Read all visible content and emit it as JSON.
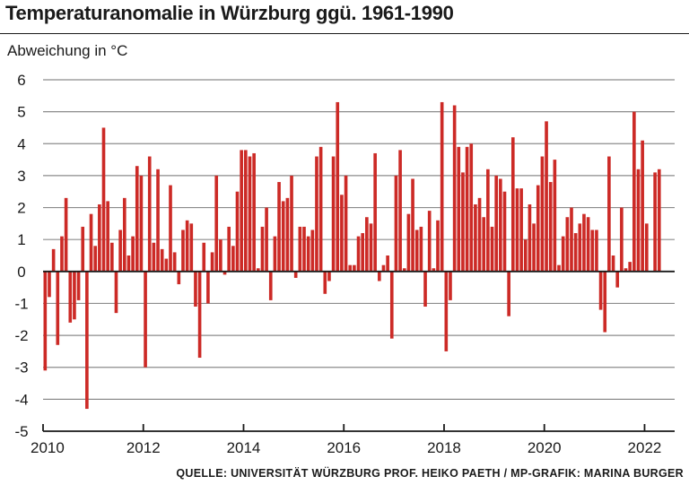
{
  "header": {
    "title": "Temperaturanomalie in Würzburg ggü. 1961-1990",
    "source": "QUELLE: UNIVERSITÄT WÜRZBURG PROF. HEIKO PAETH / MP-GRAFIK: MARINA BURGER"
  },
  "colors": {
    "bar": "#cc2a26",
    "grid": "#8c8c8c",
    "axis": "#1a1a1a"
  },
  "chart_data": {
    "type": "bar",
    "title": "Temperaturanomalie in Würzburg ggü. 1961-1990",
    "ylabel": "Abweichung in °C",
    "xlabel": "",
    "ylim": [
      -5,
      6
    ],
    "xlim": [
      2010,
      2022.6
    ],
    "grid": true,
    "frequency": "monthly",
    "start": "2010-01",
    "yticks": [
      "6",
      "5",
      "4",
      "3",
      "2",
      "1",
      "0",
      "-1",
      "-2",
      "-3",
      "-4",
      "-5"
    ],
    "xticks": [
      "2010",
      "2012",
      "2014",
      "2016",
      "2018",
      "2020",
      "2022"
    ],
    "values": [
      -3.1,
      -0.8,
      0.7,
      -2.3,
      1.1,
      2.3,
      -1.6,
      -1.5,
      -0.9,
      1.4,
      -4.3,
      1.8,
      0.8,
      2.1,
      4.5,
      2.2,
      0.9,
      -1.3,
      1.3,
      2.3,
      0.5,
      1.1,
      3.3,
      3.0,
      -3.0,
      3.6,
      0.9,
      3.2,
      0.7,
      0.4,
      2.7,
      0.6,
      -0.4,
      1.3,
      1.6,
      1.5,
      -1.1,
      -2.7,
      0.9,
      -1.0,
      0.6,
      3.0,
      1.0,
      -0.1,
      1.4,
      0.8,
      2.5,
      3.8,
      3.8,
      3.6,
      3.7,
      0.1,
      1.4,
      2.0,
      -0.9,
      1.1,
      2.8,
      2.2,
      2.3,
      3.0,
      -0.2,
      1.4,
      1.4,
      1.1,
      1.3,
      3.6,
      3.9,
      -0.7,
      -0.3,
      3.6,
      5.3,
      2.4,
      3.0,
      0.2,
      0.2,
      1.1,
      1.2,
      1.7,
      1.5,
      3.7,
      -0.3,
      0.2,
      0.5,
      -2.1,
      3.0,
      3.8,
      0.1,
      1.8,
      2.9,
      1.3,
      1.4,
      -1.1,
      1.9,
      0.1,
      1.6,
      5.3,
      -2.5,
      -0.9,
      5.2,
      3.9,
      3.1,
      3.9,
      4.0,
      2.1,
      2.3,
      1.7,
      3.2,
      1.4,
      3.0,
      2.9,
      2.5,
      -1.4,
      4.2,
      2.6,
      2.6,
      1.0,
      2.1,
      1.5,
      2.7,
      3.6,
      4.7,
      2.8,
      3.5,
      0.2,
      1.1,
      1.7,
      2.0,
      1.2,
      1.5,
      1.8,
      1.7,
      1.3,
      1.3,
      -1.2,
      -1.9,
      3.6,
      0.5,
      -0.5,
      2.0,
      0.1,
      0.3,
      5.0,
      3.2,
      4.1,
      1.5,
      0.0,
      3.1,
      3.2
    ]
  }
}
